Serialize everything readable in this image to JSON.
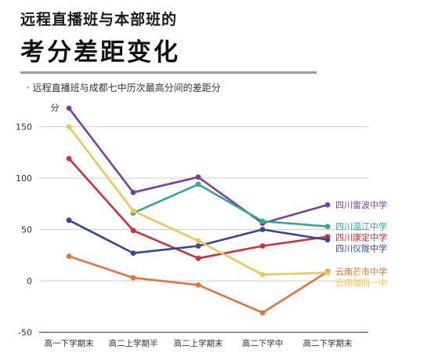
{
  "header": {
    "title_line1": "远程直播班与本部班的",
    "title_line2": "考分差距变化"
  },
  "chart_data": {
    "type": "line",
    "subtitle": "· 远程直播班与成都七中历次最高分间的差距分",
    "ylabel": "分",
    "ylim": [
      -50,
      175
    ],
    "yticks": [
      -50,
      0,
      50,
      100,
      150
    ],
    "categories": [
      "高一下学期末",
      "高二上学期半",
      "高二上学期末",
      "高二下学中",
      "高二下学期末"
    ],
    "grid": true,
    "legend": "right-end-labels",
    "series": [
      {
        "name": "四川雷波中学",
        "color": "#7b3fa0",
        "values": [
          168,
          86,
          101,
          56,
          74
        ]
      },
      {
        "name": "四川温江中学",
        "color": "#2fa79c",
        "values": [
          null,
          66,
          94,
          58,
          53
        ]
      },
      {
        "name": "四川康定中学",
        "color": "#d62d3b",
        "values": [
          119,
          49,
          22,
          34,
          43
        ]
      },
      {
        "name": "四川仪陇中学",
        "color": "#34479a",
        "values": [
          59,
          27,
          34,
          50,
          40
        ]
      },
      {
        "name": "云南芒市中学",
        "color": "#e8703a",
        "values": [
          24,
          3,
          -4,
          -31,
          9
        ]
      },
      {
        "name": "云南瑞丽一中",
        "color": "#f4c44e",
        "values": [
          150,
          68,
          39,
          6,
          8
        ]
      }
    ]
  }
}
